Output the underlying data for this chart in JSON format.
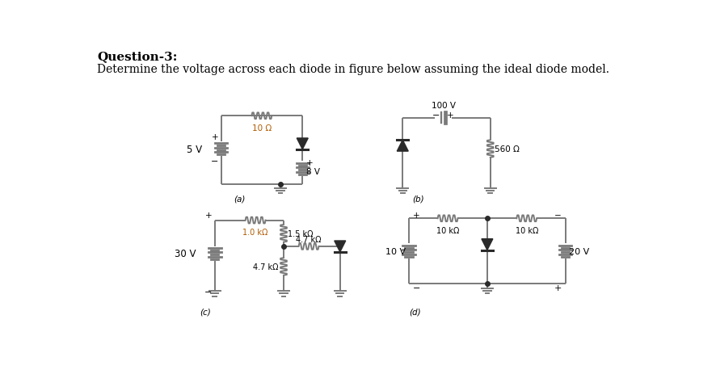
{
  "title_bold": "Question-3:",
  "subtitle": "Determine the voltage across each diode in figure below assuming the ideal diode model.",
  "background_color": "#ffffff",
  "line_color": "#7a7a7a",
  "text_color": "#000000",
  "circuit_a": {
    "label": "(a)",
    "battery_label": "5 V",
    "resistor_label": "10 Ω",
    "source_label": "8 V"
  },
  "circuit_b": {
    "label": "(b)",
    "battery_label": "100 V",
    "resistor_label": "560 Ω"
  },
  "circuit_c": {
    "label": "(c)",
    "battery_label": "30 V",
    "r1_label": "1.0 kΩ",
    "r2_label": "1.5 kΩ",
    "r3_label": "4.7 kΩ",
    "r4_label": "4.7 kΩ"
  },
  "circuit_d": {
    "label": "(d)",
    "r1_label": "10 kΩ",
    "r2_label": "10 kΩ",
    "v1_label": "10 V",
    "v2_label": "20 V"
  }
}
